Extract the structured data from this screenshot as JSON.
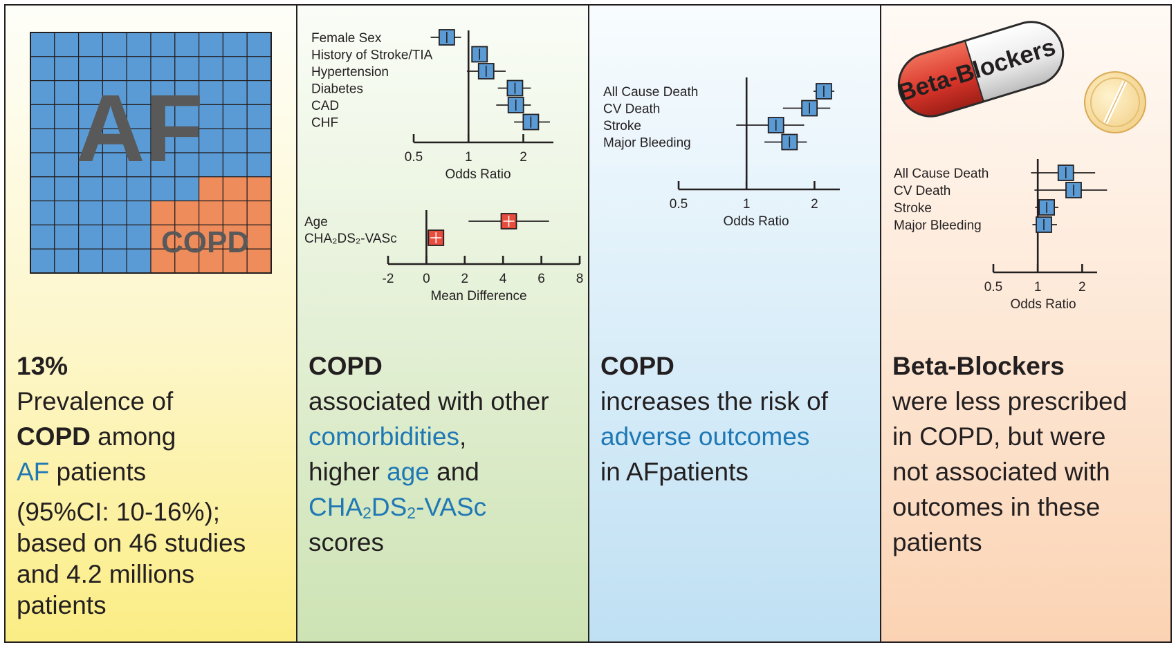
{
  "panel1": {
    "grid_big_label": "AF",
    "grid_small_label": "COPD",
    "headline": "13%",
    "text_a": "Prevalence of",
    "text_b": "COPD",
    "text_c": " among",
    "text_d": "AF",
    "text_e": " patients",
    "note_a": "(95%CI: 10-16%);",
    "note_b": "based on 46 studies",
    "note_c": "and 4.2 millions",
    "note_d": "patients",
    "colors": {
      "af": "#5b9bd5",
      "copd": "#ef8c5b",
      "text": "#595959"
    }
  },
  "panel2": {
    "headline": "COPD",
    "line1": "associated with other",
    "line2_blue": "comorbidities",
    "line2_rest": ",",
    "line3_a": "higher ",
    "line3_blue": "age",
    "line3_b": " and",
    "line4_cha": "CHA",
    "line4_s1": "2",
    "line4_ds": "DS",
    "line4_s2": "2",
    "line4_vasc": "-VASc",
    "line5": "scores"
  },
  "panel3": {
    "headline": "COPD",
    "line1": "increases the risk of",
    "line2_blue": "adverse outcomes",
    "line3": "in AFpatients"
  },
  "panel4": {
    "pill_label": "Beta-Blockers",
    "headline": "Beta-Blockers",
    "line1": "were less prescribed",
    "line2": "in COPD, but were",
    "line3": "not associated with",
    "line4": "outcomes in these",
    "line5": "patients"
  },
  "chart_data": [
    {
      "type": "scatter",
      "subtype": "forest",
      "scale": "log",
      "xlabel": "Odds Ratio",
      "xticks": [
        "0.5",
        "1",
        "2"
      ],
      "xlim": [
        0.5,
        2.5
      ],
      "categories": [
        "Female Sex",
        "History of Stroke/TIA",
        "Hypertension",
        "Diabetes",
        "CAD",
        "CHF"
      ],
      "values": [
        0.76,
        1.15,
        1.25,
        1.8,
        1.82,
        2.2
      ],
      "ci_low": [
        0.62,
        1.05,
        0.98,
        1.45,
        1.42,
        1.78
      ],
      "ci_high": [
        0.91,
        1.25,
        1.6,
        2.2,
        2.2,
        2.8
      ],
      "marker_color": "#5b9bd5"
    },
    {
      "type": "scatter",
      "subtype": "forest",
      "scale": "linear",
      "xlabel": "Mean Difference",
      "xticks": [
        "-2",
        "0",
        "2",
        "4",
        "6",
        "8"
      ],
      "xlim": [
        -2,
        8
      ],
      "categories": [
        "Age",
        "CHA₂DS₂-VASc"
      ],
      "values": [
        4.3,
        0.5
      ],
      "ci_low": [
        2.2,
        0.1
      ],
      "ci_high": [
        6.4,
        0.9
      ],
      "marker_color": "#e84c3d"
    },
    {
      "type": "scatter",
      "subtype": "forest",
      "scale": "log",
      "xlabel": "Odds Ratio",
      "xticks": [
        "0.5",
        "1",
        "2"
      ],
      "xlim": [
        0.5,
        2.5
      ],
      "categories": [
        "All Cause Death",
        "CV Death",
        "Stroke",
        "Major Bleeding"
      ],
      "values": [
        2.2,
        1.9,
        1.35,
        1.55
      ],
      "ci_low": [
        1.98,
        1.45,
        0.9,
        1.2
      ],
      "ci_high": [
        2.45,
        2.35,
        1.8,
        1.85
      ],
      "marker_color": "#5b9bd5"
    },
    {
      "type": "scatter",
      "subtype": "forest",
      "scale": "log",
      "xlabel": "Odds Ratio",
      "xticks": [
        "0.5",
        "1",
        "2"
      ],
      "xlim": [
        0.5,
        2.5
      ],
      "categories": [
        "All Cause Death",
        "CV Death",
        "Stroke",
        "Major Bleeding"
      ],
      "values": [
        1.55,
        1.75,
        1.15,
        1.1
      ],
      "ci_low": [
        0.9,
        0.95,
        0.96,
        0.92
      ],
      "ci_high": [
        2.45,
        2.95,
        1.38,
        1.35
      ],
      "marker_color": "#5b9bd5"
    }
  ]
}
